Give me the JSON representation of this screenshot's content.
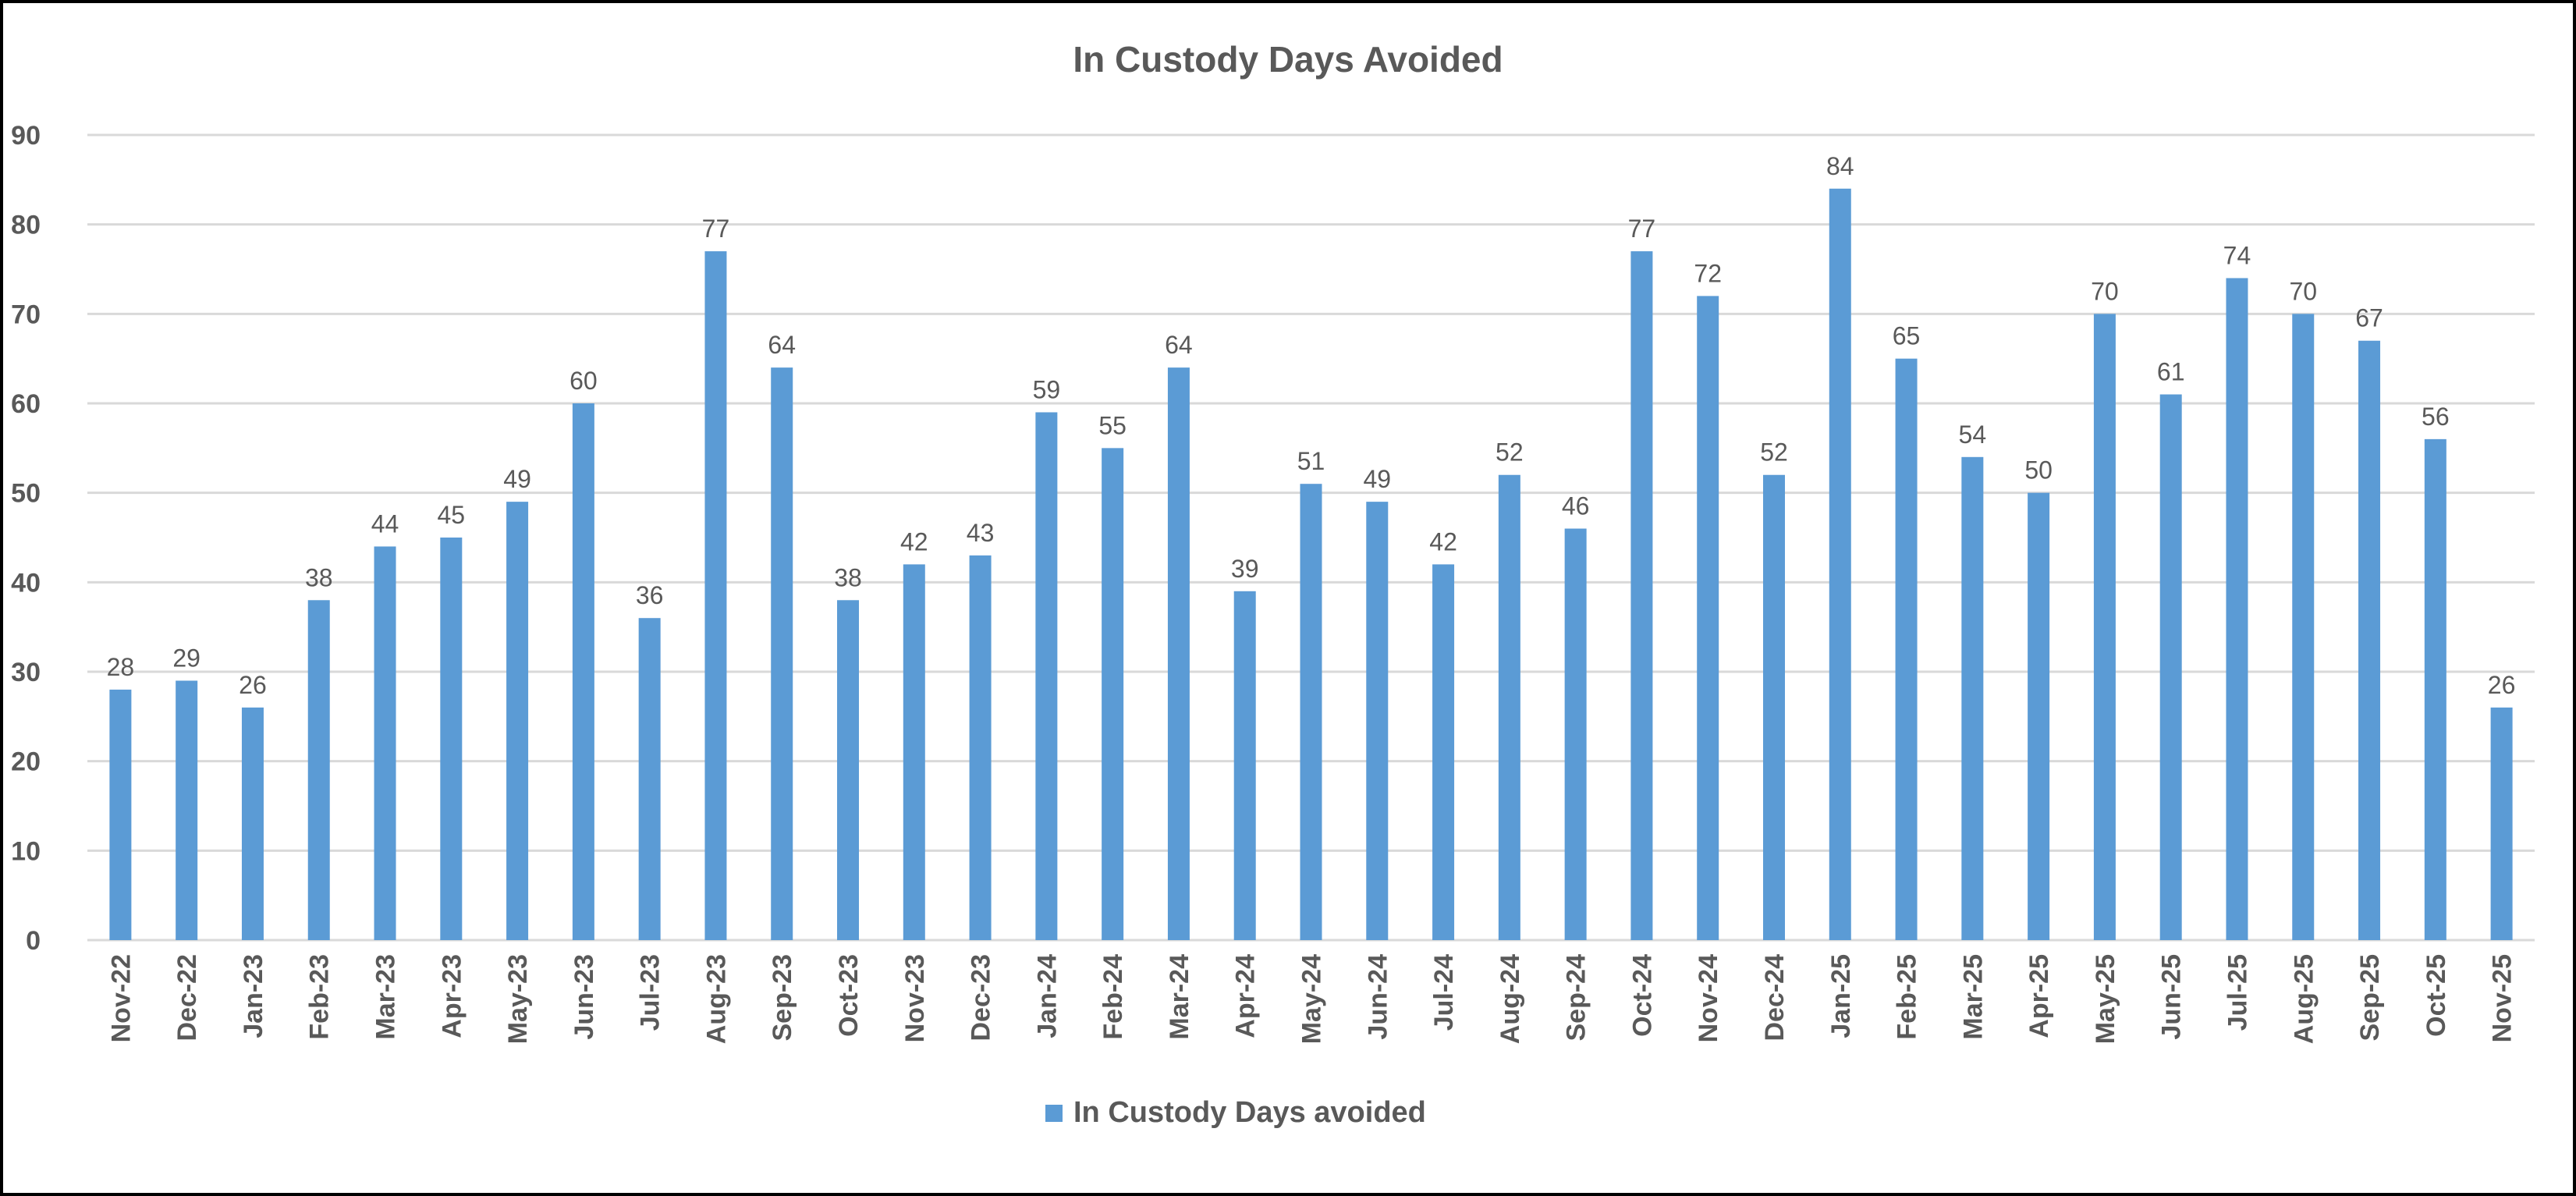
{
  "chart_data": {
    "type": "bar",
    "title": "In Custody Days Avoided",
    "xlabel": "",
    "ylabel": "",
    "ylim": [
      0,
      90
    ],
    "yticks": [
      0,
      10,
      20,
      30,
      40,
      50,
      60,
      70,
      80,
      90
    ],
    "grid": true,
    "legend_position": "bottom",
    "categories": [
      "Nov-22",
      "Dec-22",
      "Jan-23",
      "Feb-23",
      "Mar-23",
      "Apr-23",
      "May-23",
      "Jun-23",
      "Jul-23",
      "Aug-23",
      "Sep-23",
      "Oct-23",
      "Nov-23",
      "Dec-23",
      "Jan-24",
      "Feb-24",
      "Mar-24",
      "Apr-24",
      "May-24",
      "Jun-24",
      "Jul-24",
      "Aug-24",
      "Sep-24",
      "Oct-24",
      "Nov-24",
      "Dec-24",
      "Jan-25",
      "Feb-25",
      "Mar-25",
      "Apr-25",
      "May-25",
      "Jun-25",
      "Jul-25",
      "Aug-25",
      "Sep-25",
      "Oct-25",
      "Nov-25"
    ],
    "series": [
      {
        "name": "In Custody Days avoided",
        "color": "#5B9BD5",
        "values": [
          28,
          29,
          26,
          38,
          44,
          45,
          49,
          60,
          36,
          77,
          64,
          38,
          42,
          43,
          59,
          55,
          64,
          39,
          51,
          49,
          42,
          52,
          46,
          77,
          72,
          52,
          84,
          65,
          54,
          50,
          70,
          61,
          74,
          70,
          67,
          56,
          26
        ]
      }
    ]
  }
}
